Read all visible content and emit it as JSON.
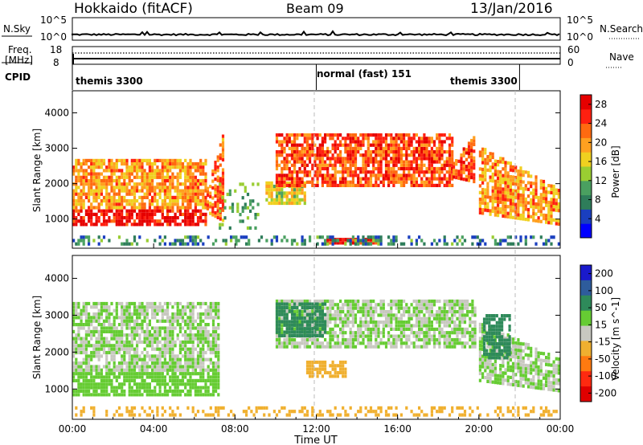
{
  "header": {
    "title": "Hokkaido (fitACF)",
    "beam": "Beam 09",
    "date": "13/Jan/2016"
  },
  "status": {
    "nsky_label": "N.Sky",
    "nsky_ticks": [
      "10^5",
      "10^0"
    ],
    "nsearch_label": "N.Search",
    "nsearch_ticks": [
      "10^5",
      "10^0"
    ],
    "freq_label_1": "Freq.",
    "freq_label_2": "[MHz]",
    "freq_ticks": [
      "18",
      "8"
    ],
    "nave_label": "Nave",
    "nave_ticks": [
      "60",
      "0"
    ],
    "cpid_label": "CPID",
    "cpid_segments": [
      {
        "label": "themis 3300",
        "start_hour": 0,
        "end_hour": 12
      },
      {
        "label": "normal (fast) 151",
        "start_hour": 12,
        "end_hour": 22
      },
      {
        "label": "themis 3300",
        "start_hour": 22,
        "end_hour": 24
      }
    ]
  },
  "chart_data": [
    {
      "type": "heatmap",
      "name": "power",
      "ylabel": "Slant Range [km]",
      "xlim": [
        0,
        24
      ],
      "ylim": [
        200,
        4600
      ],
      "yticks": [
        "1000",
        "2000",
        "3000",
        "4000"
      ],
      "yticks_values": [
        1000,
        2000,
        3000,
        4000
      ],
      "colorbar_label": "Power [dB]",
      "colorbar_ticks": [
        "4",
        "8",
        "12",
        "16",
        "20",
        "24",
        "28"
      ],
      "colorbar_range": [
        0,
        30
      ],
      "colormap": [
        "#0000ff",
        "#1a3fbf",
        "#2e7d5a",
        "#4aa060",
        "#9acd32",
        "#f0d020",
        "#ffa020",
        "#ff6a10",
        "#ff2010",
        "#e60000"
      ],
      "regions": [
        {
          "t0": 0.0,
          "t1": 6.6,
          "r0": 800,
          "r1": 2700,
          "pattern": "arc",
          "level": 20
        },
        {
          "t0": 6.6,
          "t1": 7.4,
          "r0": 900,
          "r1": 3400,
          "pattern": "rise",
          "level": 22
        },
        {
          "t0": 7.2,
          "t1": 9.2,
          "r0": 700,
          "r1": 2000,
          "pattern": "scatter",
          "level": 10
        },
        {
          "t0": 9.5,
          "t1": 11.5,
          "r0": 1400,
          "r1": 2000,
          "pattern": "band",
          "level": 16
        },
        {
          "t0": 10.0,
          "t1": 18.7,
          "r0": 1900,
          "r1": 3400,
          "pattern": "band",
          "level": 24
        },
        {
          "t0": 18.7,
          "t1": 19.8,
          "r0": 2000,
          "r1": 3400,
          "pattern": "rise",
          "level": 24
        },
        {
          "t0": 20.0,
          "t1": 24.0,
          "r0": 800,
          "r1": 3000,
          "pattern": "decay",
          "level": 20
        },
        {
          "t0": 12.5,
          "t1": 15.0,
          "r0": 280,
          "r1": 420,
          "pattern": "floor",
          "level": 26
        },
        {
          "t0": 0.0,
          "t1": 24.0,
          "r0": 250,
          "r1": 480,
          "pattern": "noise",
          "level": 8
        }
      ]
    },
    {
      "type": "heatmap",
      "name": "velocity",
      "ylabel": "Slant Range [km]",
      "xlabel": "Time UT",
      "xlim": [
        0,
        24
      ],
      "ylim": [
        200,
        4600
      ],
      "xticks": [
        "00:00",
        "04:00",
        "08:00",
        "12:00",
        "16:00",
        "20:00",
        "00:00"
      ],
      "xticks_values": [
        0,
        4,
        8,
        12,
        16,
        20,
        24
      ],
      "yticks": [
        "1000",
        "2000",
        "3000",
        "4000"
      ],
      "yticks_values": [
        1000,
        2000,
        3000,
        4000
      ],
      "colorbar_label": "Velocity [m s^-1]",
      "colorbar_ticks": [
        "200",
        "100",
        "50",
        "15",
        "-15",
        "-50",
        "-100",
        "-200"
      ],
      "colormap": [
        "#1a1acc",
        "#2e5c9c",
        "#2e8a5a",
        "#66cc33",
        "#c8c8c0",
        "#f0b030",
        "#ff7a10",
        "#ff2a10",
        "#e00000"
      ],
      "regions": [
        {
          "t0": 0.0,
          "t1": 7.2,
          "r0": 800,
          "r1": 3300,
          "pattern": "arc",
          "level": 15
        },
        {
          "t0": 10.0,
          "t1": 19.8,
          "r0": 2100,
          "r1": 3400,
          "pattern": "band",
          "level": 15
        },
        {
          "t0": 10.0,
          "t1": 12.5,
          "r0": 2400,
          "r1": 3300,
          "pattern": "band",
          "level": 60
        },
        {
          "t0": 20.0,
          "t1": 24.0,
          "r0": 900,
          "r1": 2800,
          "pattern": "decay",
          "level": 15
        },
        {
          "t0": 20.2,
          "t1": 21.5,
          "r0": 1800,
          "r1": 3000,
          "pattern": "band",
          "level": 60
        },
        {
          "t0": 11.5,
          "t1": 13.5,
          "r0": 1300,
          "r1": 1700,
          "pattern": "band",
          "level": -40
        },
        {
          "t0": 0.0,
          "t1": 24.0,
          "r0": 250,
          "r1": 480,
          "pattern": "noise",
          "level": -30
        }
      ]
    }
  ]
}
